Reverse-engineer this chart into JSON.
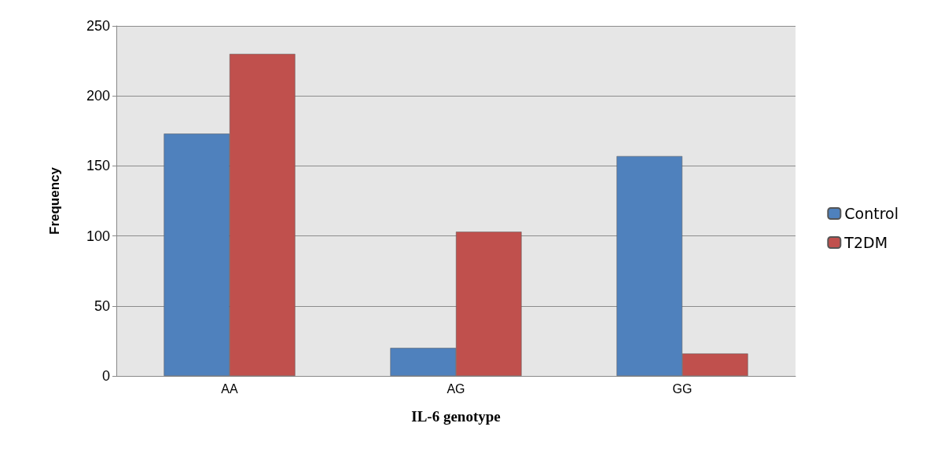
{
  "chart_data": {
    "type": "bar",
    "xlabel": "IL-6 genotype",
    "ylabel": "Frequency",
    "categories": [
      "AA",
      "AG",
      "GG"
    ],
    "series": [
      {
        "name": "Control",
        "color": "#4f81bd",
        "values": [
          173,
          20,
          157
        ]
      },
      {
        "name": "T2DM",
        "color": "#c0504d",
        "values": [
          230,
          103,
          16
        ]
      }
    ],
    "ylim": [
      0,
      250
    ],
    "yticks": [
      0,
      50,
      100,
      150,
      200,
      250
    ],
    "grid": "y",
    "legend": "right"
  }
}
